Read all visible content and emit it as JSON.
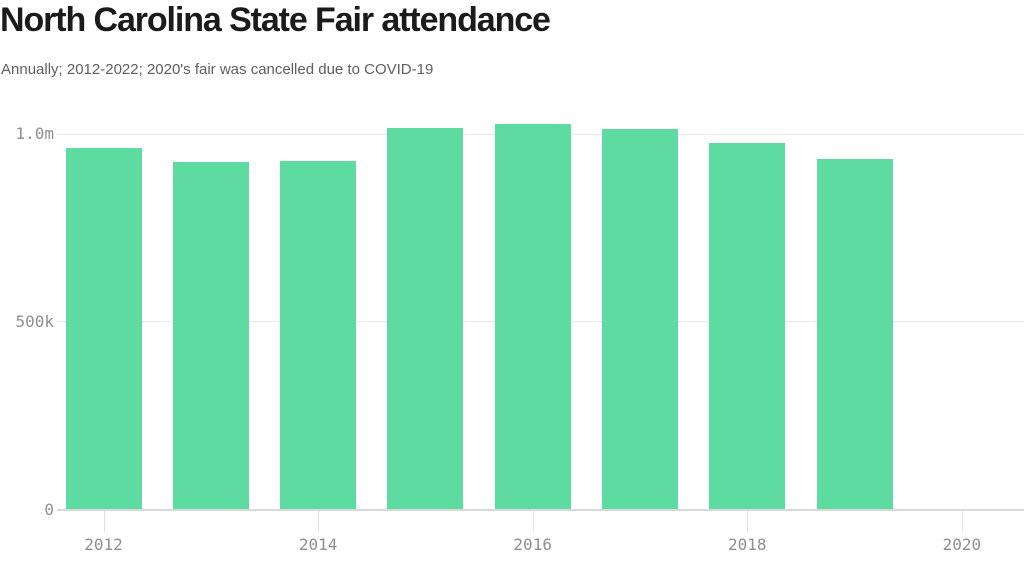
{
  "header": {
    "title": "North Carolina State Fair attendance",
    "subtitle": "Annually; 2012-2022; 2020's fair was cancelled due to COVID-19"
  },
  "chart_data": {
    "type": "bar",
    "title": "North Carolina State Fair attendance",
    "subtitle": "Annually; 2012-2022; 2020's fair was cancelled due to COVID-19",
    "categories": [
      "2012",
      "2013",
      "2014",
      "2015",
      "2016",
      "2017",
      "2018",
      "2019",
      "2020"
    ],
    "values": [
      962000,
      924000,
      926000,
      1015000,
      1025000,
      1011000,
      974000,
      933000,
      null
    ],
    "series_note": "2020 has no bar (fair cancelled per subtitle); single series, no legend",
    "xlabel": "",
    "ylabel": "",
    "ylim": [
      0,
      1050000
    ],
    "yticks": [
      {
        "value": 0,
        "label": "0"
      },
      {
        "value": 500000,
        "label": "500k"
      },
      {
        "value": 1000000,
        "label": "1.0m"
      }
    ],
    "xtick_labels": [
      "2012",
      "2014",
      "2016",
      "2018",
      "2020"
    ],
    "grid": "horizontal gridlines on, vertical off",
    "legend_position": "none",
    "colors": {
      "bar": "#5edba0",
      "title": "#1b1b1b",
      "subtitle": "#5e5e5e",
      "axis_text": "#8f8f8f",
      "gridline": "#e8e8e8",
      "axis_line": "#d9d9d9",
      "tick": "#e0e0e0",
      "background": "#ffffff"
    }
  }
}
